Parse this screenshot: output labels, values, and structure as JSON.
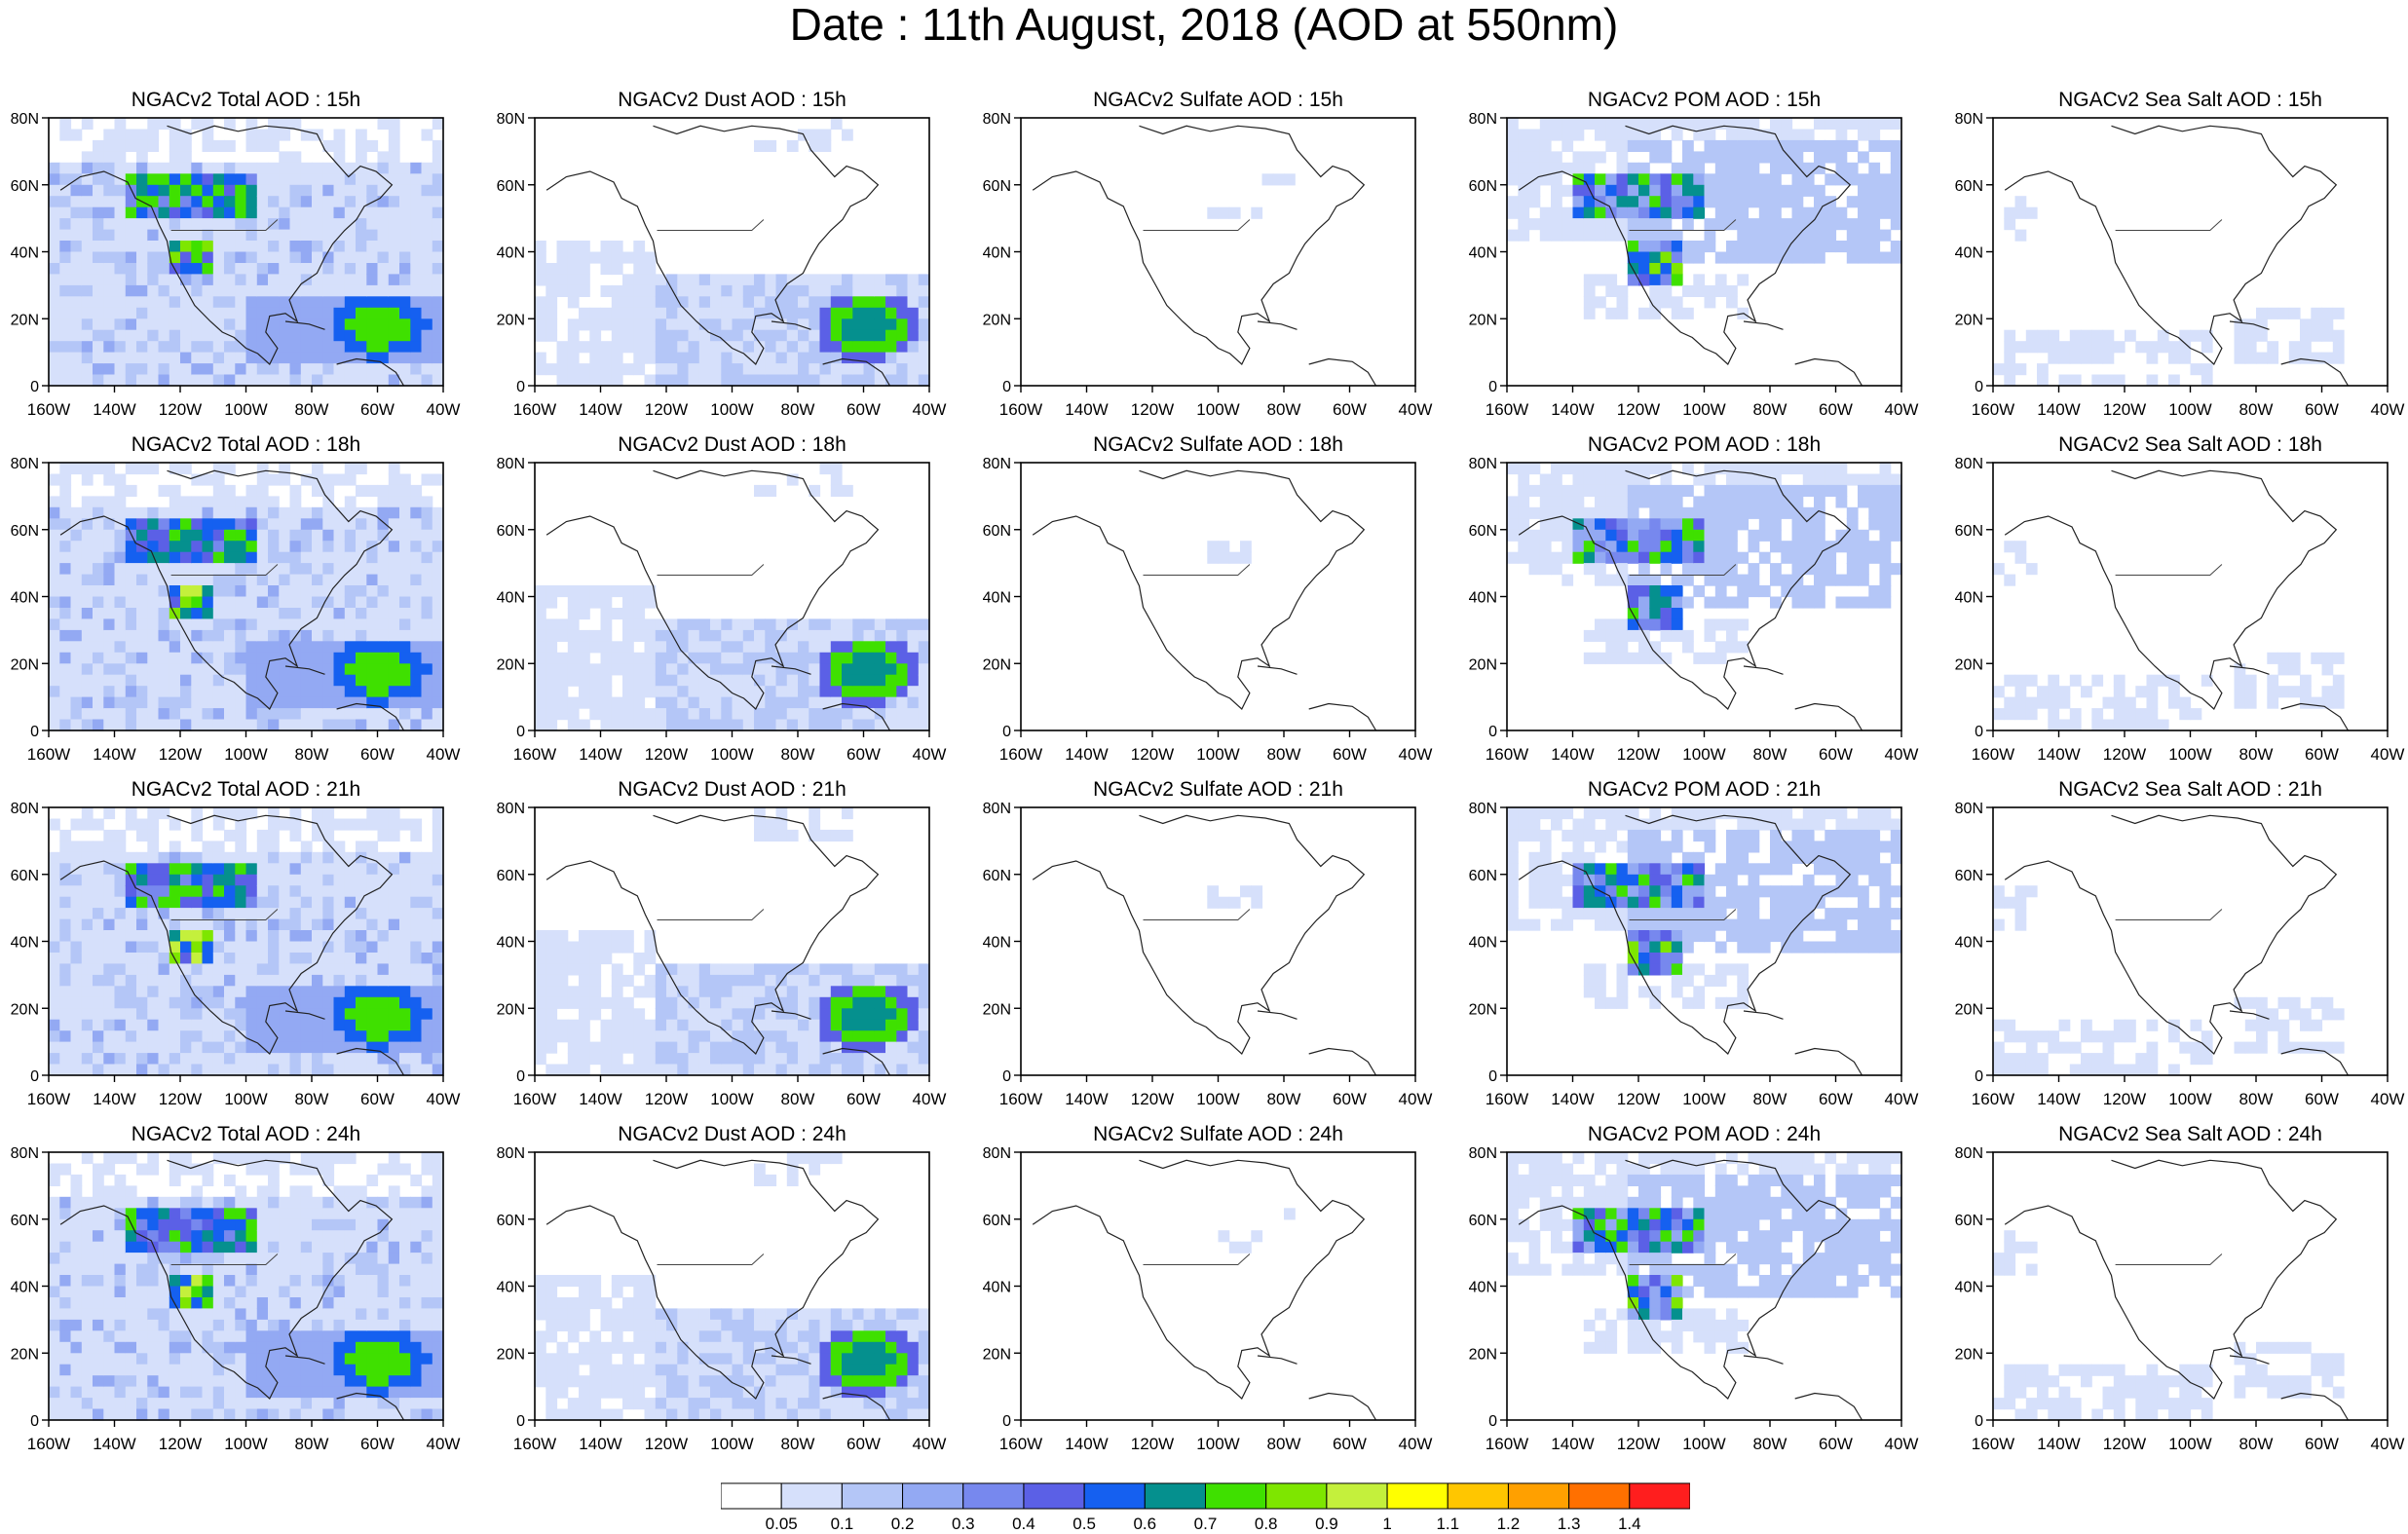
{
  "title": "Date : 11th August, 2018 (AOD at 550nm)",
  "panels": [
    [
      "NGACv2 Total AOD : 15h",
      "NGACv2 Dust AOD : 15h",
      "NGACv2 Sulfate AOD : 15h",
      "NGACv2 POM AOD : 15h",
      "NGACv2 Sea Salt AOD : 15h"
    ],
    [
      "NGACv2 Total AOD : 18h",
      "NGACv2 Dust AOD : 18h",
      "NGACv2 Sulfate AOD : 18h",
      "NGACv2 POM AOD : 18h",
      "NGACv2 Sea Salt AOD : 18h"
    ],
    [
      "NGACv2 Total AOD : 21h",
      "NGACv2 Dust AOD : 21h",
      "NGACv2 Sulfate AOD : 21h",
      "NGACv2 POM AOD : 21h",
      "NGACv2 Sea Salt AOD : 21h"
    ],
    [
      "NGACv2 Total AOD : 24h",
      "NGACv2 Dust AOD : 24h",
      "NGACv2 Sulfate AOD : 24h",
      "NGACv2 POM AOD : 24h",
      "NGACv2 Sea Salt  AOD : 24h"
    ]
  ],
  "x_ticks": [
    "160W",
    "140W",
    "120W",
    "100W",
    "80W",
    "60W",
    "40W"
  ],
  "y_ticks": [
    "0",
    "20N",
    "40N",
    "60N",
    "80N"
  ],
  "colorbar": {
    "levels": [
      "0.05",
      "0.1",
      "0.2",
      "0.3",
      "0.4",
      "0.5",
      "0.6",
      "0.7",
      "0.8",
      "0.9",
      "1",
      "1.1",
      "1.2",
      "1.3",
      "1.4"
    ],
    "colors": [
      "#ffffff",
      "#d6e0fb",
      "#b4c6f7",
      "#93a9f3",
      "#7788ee",
      "#5b60e6",
      "#1560f0",
      "#05908e",
      "#3fe000",
      "#7ee600",
      "#c4f03c",
      "#ffff00",
      "#ffc600",
      "#ffa000",
      "#ff7000",
      "#ff1e1e"
    ]
  }
}
